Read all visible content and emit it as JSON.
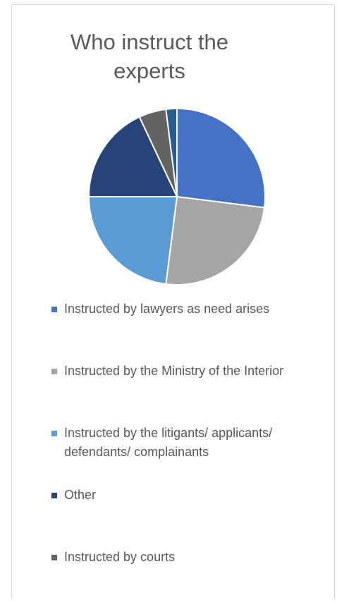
{
  "chart_data": {
    "type": "pie",
    "title": "Who instruct the experts",
    "legend_position": "bottom",
    "series": [
      {
        "categories": [
          "Instructed by lawyers as need arises",
          "Instructed by the Ministry of the Interior",
          "Instructed by the litigants/ applicants/ defendants/ complainants",
          "Other",
          "Instructed by courts",
          ""
        ],
        "values": [
          27,
          25,
          23,
          18,
          5,
          2
        ],
        "colors": [
          "#4472C4",
          "#A5A5A5",
          "#5B9BD5",
          "#264478",
          "#636363",
          "#255E91"
        ]
      }
    ]
  }
}
